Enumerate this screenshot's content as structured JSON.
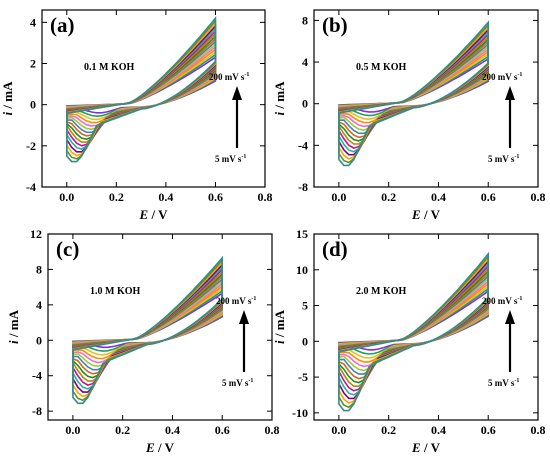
{
  "figure": {
    "xlabel_var": "E",
    "xlabel_unit": "V",
    "ylabel_var": "i",
    "ylabel_unit": "mA",
    "arrow_top_label": "200 mV s",
    "arrow_bottom_label": "5 mV s",
    "rate_unit_exponent": "-1"
  },
  "chart_data": [
    {
      "type": "line",
      "panel_label": "(a)",
      "condition": "0.1 M KOH",
      "xlim": [
        -0.1,
        0.8
      ],
      "ylim": [
        -4,
        4.6
      ],
      "xticks": [
        "0.0",
        "0.2",
        "0.4",
        "0.6",
        "0.8"
      ],
      "xtick_values": [
        0.0,
        0.2,
        0.4,
        0.6,
        0.8
      ],
      "yticks": [
        "-4",
        "-2",
        "0",
        "2",
        "4"
      ],
      "ytick_values": [
        -4,
        -2,
        0,
        2,
        4
      ],
      "cv": {
        "vertex_current_max": 4.2,
        "vertex_current_min": 2.3,
        "cathodic_peak_max": -2.8,
        "cathodic_peak_min": -0.4,
        "curves": 16
      }
    },
    {
      "type": "line",
      "panel_label": "(b)",
      "condition": "0.5 M KOH",
      "xlim": [
        -0.1,
        0.8
      ],
      "ylim": [
        -8,
        9
      ],
      "xticks": [
        "0.0",
        "0.2",
        "0.4",
        "0.6",
        "0.8"
      ],
      "xtick_values": [
        0.0,
        0.2,
        0.4,
        0.6,
        0.8
      ],
      "yticks": [
        "-8",
        "-4",
        "0",
        "4",
        "8"
      ],
      "ytick_values": [
        -8,
        -4,
        0,
        4,
        8
      ],
      "cv": {
        "vertex_current_max": 7.8,
        "vertex_current_min": 4.3,
        "cathodic_peak_max": -6.0,
        "cathodic_peak_min": -0.8,
        "curves": 16
      }
    },
    {
      "type": "line",
      "panel_label": "(c)",
      "condition": "1.0 M KOH",
      "xlim": [
        -0.1,
        0.8
      ],
      "ylim": [
        -9,
        12
      ],
      "xticks": [
        "0.0",
        "0.2",
        "0.4",
        "0.6",
        "0.8"
      ],
      "xtick_values": [
        0.0,
        0.2,
        0.4,
        0.6,
        0.8
      ],
      "yticks": [
        "-8",
        "-4",
        "0",
        "4",
        "8",
        "12"
      ],
      "ytick_values": [
        -8,
        -4,
        0,
        4,
        8,
        12
      ],
      "cv": {
        "vertex_current_max": 9.3,
        "vertex_current_min": 5.3,
        "cathodic_peak_max": -7.2,
        "cathodic_peak_min": -0.8,
        "curves": 16
      }
    },
    {
      "type": "line",
      "panel_label": "(d)",
      "condition": "2.0 M KOH",
      "xlim": [
        -0.1,
        0.8
      ],
      "ylim": [
        -11,
        15
      ],
      "xticks": [
        "0.0",
        "0.2",
        "0.4",
        "0.6",
        "0.8"
      ],
      "xtick_values": [
        0.0,
        0.2,
        0.4,
        0.6,
        0.8
      ],
      "yticks": [
        "-10",
        "-5",
        "0",
        "5",
        "10",
        "15"
      ],
      "ytick_values": [
        -10,
        -5,
        0,
        5,
        10,
        15
      ],
      "cv": {
        "vertex_current_max": 12.2,
        "vertex_current_min": 7.0,
        "cathodic_peak_max": -9.8,
        "cathodic_peak_min": -1.2,
        "curves": 16
      }
    }
  ],
  "colors": {
    "palette": [
      "#8a2be2",
      "#1aa260",
      "#e0c020",
      "#ff8c00",
      "#ff66cc",
      "#9acd32",
      "#4682b4",
      "#d2691e",
      "#228b22",
      "#b8860b",
      "#c71585",
      "#20b2aa",
      "#800080",
      "#ffa500",
      "#6b8e23",
      "#2f8f8f"
    ],
    "axis": "#000000"
  }
}
